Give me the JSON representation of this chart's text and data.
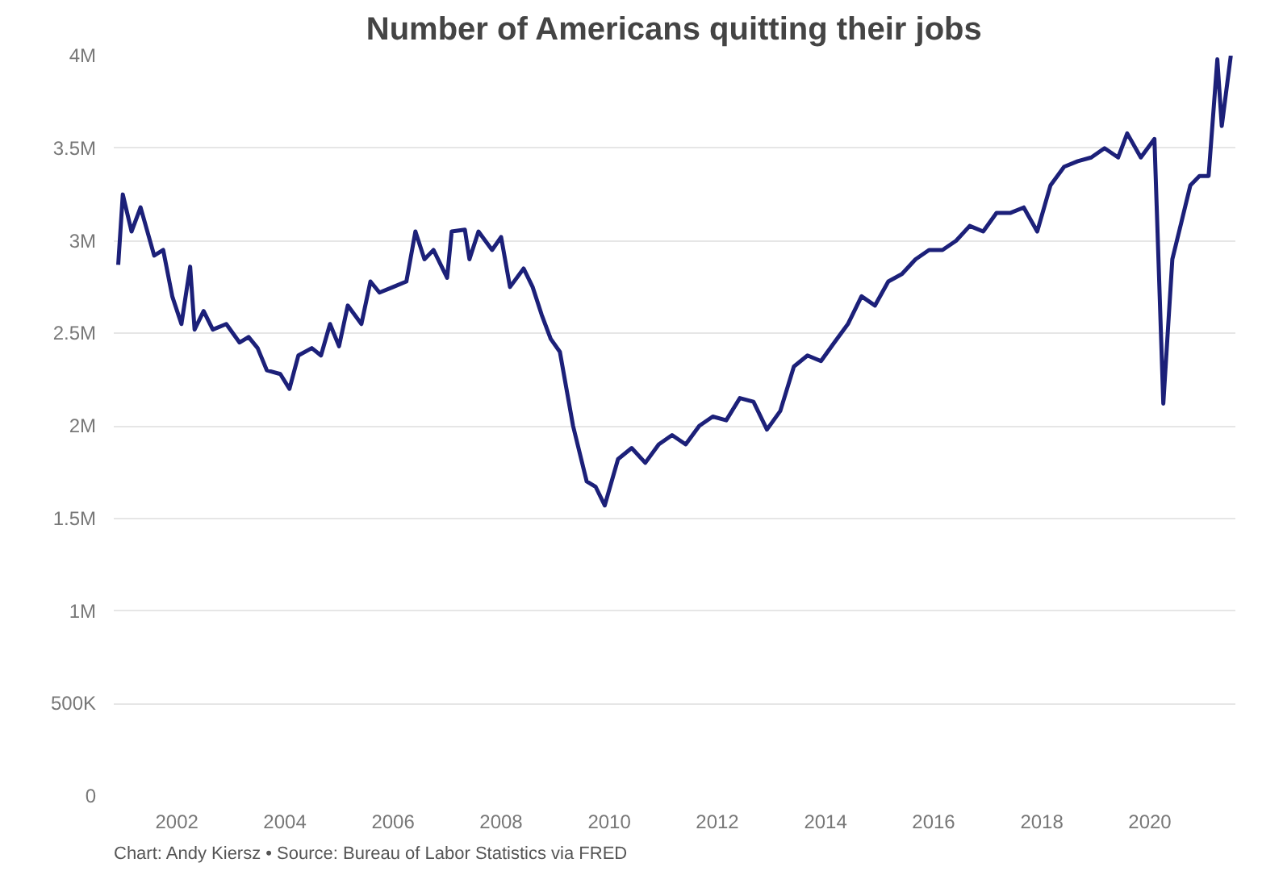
{
  "chart_data": {
    "type": "line",
    "title": "Number of Americans quitting their jobs",
    "x": [
      "2000-12",
      "2001-01",
      "2001-03",
      "2001-05",
      "2001-08",
      "2001-10",
      "2001-12",
      "2002-02",
      "2002-04",
      "2002-05",
      "2002-07",
      "2002-09",
      "2002-12",
      "2003-03",
      "2003-05",
      "2003-07",
      "2003-09",
      "2003-12",
      "2004-02",
      "2004-04",
      "2004-07",
      "2004-09",
      "2004-11",
      "2005-01",
      "2005-03",
      "2005-06",
      "2005-08",
      "2005-10",
      "2006-01",
      "2006-04",
      "2006-06",
      "2006-08",
      "2006-10",
      "2007-01",
      "2007-02",
      "2007-05",
      "2007-06",
      "2007-08",
      "2007-11",
      "2008-01",
      "2008-03",
      "2008-06",
      "2008-08",
      "2008-10",
      "2008-12",
      "2009-02",
      "2009-05",
      "2009-08",
      "2009-10",
      "2009-12",
      "2010-03",
      "2010-06",
      "2010-09",
      "2010-12",
      "2011-03",
      "2011-06",
      "2011-09",
      "2011-12",
      "2012-03",
      "2012-06",
      "2012-09",
      "2012-12",
      "2013-03",
      "2013-06",
      "2013-09",
      "2013-12",
      "2014-03",
      "2014-06",
      "2014-09",
      "2014-12",
      "2015-03",
      "2015-06",
      "2015-09",
      "2015-12",
      "2016-03",
      "2016-06",
      "2016-09",
      "2016-12",
      "2017-03",
      "2017-06",
      "2017-09",
      "2017-12",
      "2018-03",
      "2018-06",
      "2018-09",
      "2018-12",
      "2019-03",
      "2019-06",
      "2019-08",
      "2019-11",
      "2020-02",
      "2020-04",
      "2020-06",
      "2020-08",
      "2020-10",
      "2020-12",
      "2021-02",
      "2021-04",
      "2021-05",
      "2021-07"
    ],
    "series": [
      {
        "color": "#1c2079",
        "values": [
          2870000,
          3250000,
          3050000,
          3180000,
          2920000,
          2950000,
          2700000,
          2550000,
          2860000,
          2520000,
          2620000,
          2520000,
          2550000,
          2450000,
          2480000,
          2420000,
          2300000,
          2280000,
          2200000,
          2380000,
          2420000,
          2380000,
          2550000,
          2430000,
          2650000,
          2550000,
          2780000,
          2720000,
          2750000,
          2780000,
          3050000,
          2900000,
          2950000,
          2800000,
          3050000,
          3060000,
          2900000,
          3050000,
          2950000,
          3020000,
          2750000,
          2850000,
          2750000,
          2600000,
          2470000,
          2400000,
          2000000,
          1700000,
          1670000,
          1570000,
          1820000,
          1880000,
          1800000,
          1900000,
          1950000,
          1900000,
          2000000,
          2050000,
          2030000,
          2150000,
          2130000,
          1980000,
          2080000,
          2320000,
          2380000,
          2350000,
          2450000,
          2550000,
          2700000,
          2650000,
          2780000,
          2820000,
          2900000,
          2950000,
          2950000,
          3000000,
          3080000,
          3050000,
          3150000,
          3150000,
          3180000,
          3050000,
          3300000,
          3400000,
          3430000,
          3450000,
          3500000,
          3450000,
          3580000,
          3450000,
          3550000,
          2120000,
          2900000,
          3100000,
          3300000,
          3350000,
          3350000,
          3980000,
          3620000,
          4000000
        ]
      }
    ],
    "xlim": [
      "2000-11",
      "2021-08"
    ],
    "xticks": [
      "2002",
      "2004",
      "2006",
      "2008",
      "2010",
      "2012",
      "2014",
      "2016",
      "2018",
      "2020"
    ],
    "ylim": [
      0,
      4000000
    ],
    "yticks": [
      {
        "value": 0,
        "label": "0"
      },
      {
        "value": 500000,
        "label": "500K"
      },
      {
        "value": 1000000,
        "label": "1M"
      },
      {
        "value": 1500000,
        "label": "1.5M"
      },
      {
        "value": 2000000,
        "label": "2M"
      },
      {
        "value": 2500000,
        "label": "2.5M"
      },
      {
        "value": 3000000,
        "label": "3M"
      },
      {
        "value": 3500000,
        "label": "3.5M"
      },
      {
        "value": 4000000,
        "label": "4M"
      }
    ],
    "grid": "y",
    "annotations": [
      "Chart: Andy Kiersz • Source: Bureau of Labor Statistics via FRED"
    ]
  }
}
